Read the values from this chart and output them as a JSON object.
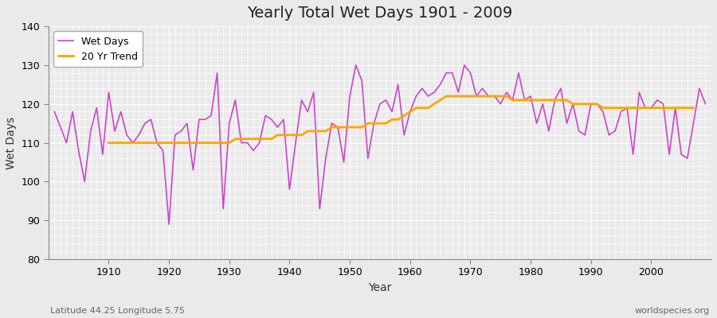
{
  "title": "Yearly Total Wet Days 1901 - 2009",
  "xlabel": "Year",
  "ylabel": "Wet Days",
  "subtitle": "Latitude 44.25 Longitude 5.75",
  "watermark": "worldspecies.org",
  "years": [
    1901,
    1902,
    1903,
    1904,
    1905,
    1906,
    1907,
    1908,
    1909,
    1910,
    1911,
    1912,
    1913,
    1914,
    1915,
    1916,
    1917,
    1918,
    1919,
    1920,
    1921,
    1922,
    1923,
    1924,
    1925,
    1926,
    1927,
    1928,
    1929,
    1930,
    1931,
    1932,
    1933,
    1934,
    1935,
    1936,
    1937,
    1938,
    1939,
    1940,
    1941,
    1942,
    1943,
    1944,
    1945,
    1946,
    1947,
    1948,
    1949,
    1950,
    1951,
    1952,
    1953,
    1954,
    1955,
    1956,
    1957,
    1958,
    1959,
    1960,
    1961,
    1962,
    1963,
    1964,
    1965,
    1966,
    1967,
    1968,
    1969,
    1970,
    1971,
    1972,
    1973,
    1974,
    1975,
    1976,
    1977,
    1978,
    1979,
    1980,
    1981,
    1982,
    1983,
    1984,
    1985,
    1986,
    1987,
    1988,
    1989,
    1990,
    1991,
    1992,
    1993,
    1994,
    1995,
    1996,
    1997,
    1998,
    1999,
    2000,
    2001,
    2002,
    2003,
    2004,
    2005,
    2006,
    2007,
    2008,
    2009
  ],
  "wet_days": [
    118,
    114,
    110,
    118,
    108,
    100,
    113,
    119,
    107,
    123,
    113,
    118,
    112,
    110,
    112,
    115,
    116,
    110,
    108,
    89,
    112,
    113,
    115,
    103,
    116,
    116,
    117,
    128,
    93,
    115,
    121,
    110,
    110,
    108,
    110,
    117,
    116,
    114,
    116,
    98,
    110,
    121,
    118,
    123,
    93,
    106,
    115,
    114,
    105,
    122,
    130,
    126,
    106,
    115,
    120,
    121,
    118,
    125,
    112,
    118,
    122,
    124,
    122,
    123,
    125,
    128,
    128,
    123,
    130,
    128,
    122,
    124,
    122,
    122,
    120,
    123,
    121,
    128,
    121,
    122,
    115,
    120,
    113,
    121,
    124,
    115,
    120,
    113,
    112,
    120,
    120,
    118,
    112,
    113,
    118,
    119,
    107,
    123,
    119,
    119,
    121,
    120,
    107,
    119,
    107,
    106,
    115,
    124,
    120
  ],
  "trend_values": [
    null,
    null,
    null,
    null,
    null,
    null,
    null,
    null,
    null,
    110,
    110,
    110,
    110,
    110,
    110,
    110,
    110,
    110,
    110,
    110,
    110,
    110,
    110,
    110,
    110,
    110,
    110,
    110,
    110,
    110,
    111,
    111,
    111,
    111,
    111,
    111,
    111,
    112,
    112,
    112,
    112,
    112,
    113,
    113,
    113,
    113,
    114,
    114,
    114,
    114,
    114,
    114,
    115,
    115,
    115,
    115,
    116,
    116,
    117,
    118,
    119,
    119,
    119,
    120,
    121,
    122,
    122,
    122,
    122,
    122,
    122,
    122,
    122,
    122,
    122,
    122,
    121,
    121,
    121,
    121,
    121,
    121,
    121,
    121,
    121,
    121,
    120,
    120,
    120,
    120,
    120,
    119,
    119,
    119,
    119,
    119,
    119,
    119,
    119,
    119,
    119,
    119,
    119,
    119,
    119,
    119,
    119,
    null,
    null
  ],
  "wet_days_color": "#CC44CC",
  "trend_color": "#FFA500",
  "bg_color": "#EAEAEA",
  "plot_bg_color": "#EAEAEA",
  "grid_color": "#FFFFFF",
  "ylim": [
    80,
    140
  ],
  "xlim": [
    1900,
    2010
  ],
  "yticks": [
    80,
    90,
    100,
    110,
    120,
    130,
    140
  ],
  "xticks": [
    1910,
    1920,
    1930,
    1940,
    1950,
    1960,
    1970,
    1980,
    1990,
    2000
  ]
}
